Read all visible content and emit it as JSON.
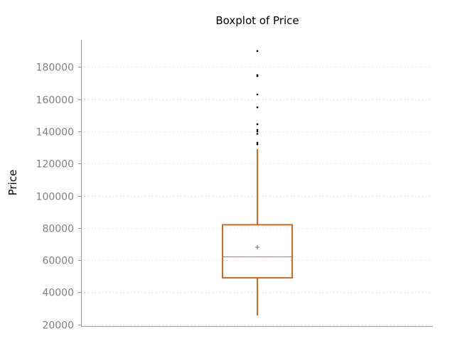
{
  "chart_data": {
    "type": "boxplot",
    "title": "Boxplot of Price",
    "xlabel": "",
    "ylabel": "Price",
    "ylim": [
      19000,
      197000
    ],
    "yticks": [
      20000,
      40000,
      60000,
      80000,
      100000,
      120000,
      140000,
      160000,
      180000
    ],
    "ytick_labels": [
      "20000",
      "40000",
      "60000",
      "80000",
      "100000",
      "120000",
      "140000",
      "160000",
      "180000"
    ],
    "grid": true,
    "box": {
      "whisker_low": 25500,
      "q1": 49000,
      "median": 62000,
      "mean": 68000,
      "q3": 82000,
      "whisker_high": 129000,
      "outliers": [
        132000,
        133000,
        138500,
        140000,
        141000,
        144500,
        155000,
        163000,
        174500,
        175000,
        190000
      ]
    },
    "colors": {
      "box": "#d2691e",
      "outlier": "#000000",
      "grid": "#c8c8c8",
      "axis": "#9a9a9a",
      "tick_label": "#7f7f7f"
    }
  }
}
